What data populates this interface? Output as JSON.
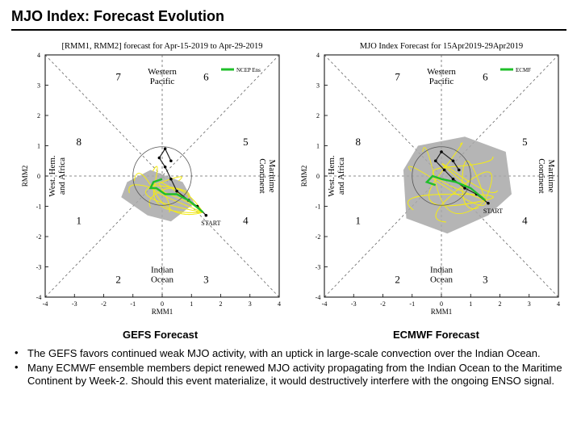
{
  "page": {
    "title": "MJO Index: Forecast Evolution"
  },
  "chart_data": [
    {
      "type": "scatter",
      "title": "[RMM1, RMM2] forecast for Apr-15-2019 to Apr-29-2019",
      "xlabel": "RMM1",
      "ylabel": "RMM2",
      "xlim": [
        -4,
        4
      ],
      "ylim": [
        -4,
        4
      ],
      "xticks": [
        "-4",
        "-3",
        "-2",
        "-1",
        "0",
        "1",
        "2",
        "3",
        "4"
      ],
      "yticks": [
        "-4",
        "-3",
        "-2",
        "-1",
        "0",
        "1",
        "2",
        "3",
        "4"
      ],
      "legend": [
        "NCEP Ens"
      ],
      "phase_labels": [
        "1",
        "2",
        "3",
        "4",
        "5",
        "6",
        "7",
        "8"
      ],
      "region_labels": {
        "top": "Western\nPacific",
        "right": "Maritime\nContinent",
        "bottom": "Indian\nOcean",
        "left": "West. Hem.\nand Africa"
      },
      "start_label": "START",
      "track": [
        [
          1.5,
          -1.3
        ],
        [
          1.2,
          -1.0
        ],
        [
          0.9,
          -0.8
        ],
        [
          0.5,
          -0.5
        ],
        [
          0.3,
          -0.1
        ],
        [
          0.1,
          0.3
        ],
        [
          -0.1,
          0.6
        ],
        [
          0.1,
          0.9
        ],
        [
          0.3,
          0.5
        ]
      ],
      "ensemble_mean": [
        [
          1.4,
          -1.2
        ],
        [
          0.9,
          -0.8
        ],
        [
          0.5,
          -0.6
        ],
        [
          0.1,
          -0.6
        ],
        [
          -0.2,
          -0.4
        ],
        [
          -0.4,
          -0.4
        ],
        [
          -0.3,
          -0.2
        ],
        [
          0.0,
          -0.1
        ]
      ],
      "spread": [
        [
          -1.4,
          -0.7
        ],
        [
          -1.2,
          -0.2
        ],
        [
          -0.4,
          0.2
        ],
        [
          0.7,
          -0.2
        ],
        [
          1.1,
          -0.9
        ],
        [
          0.3,
          -1.5
        ],
        [
          -0.5,
          -1.3
        ]
      ],
      "caption": "GEFS Forecast"
    },
    {
      "type": "scatter",
      "title": "MJO Index Forecast for 15Apr2019-29Apr2019",
      "xlabel": "RMM1",
      "ylabel": "RMM2",
      "xlim": [
        -4,
        4
      ],
      "ylim": [
        -4,
        4
      ],
      "xticks": [
        "-4",
        "-3",
        "-2",
        "-1",
        "0",
        "1",
        "2",
        "3",
        "4"
      ],
      "yticks": [
        "-4",
        "-3",
        "-2",
        "-1",
        "0",
        "1",
        "2",
        "3",
        "4"
      ],
      "legend": [
        "ECMF"
      ],
      "phase_labels": [
        "1",
        "2",
        "3",
        "4",
        "5",
        "6",
        "7",
        "8"
      ],
      "region_labels": {
        "top": "Western\nPacific",
        "right": "Maritime\nContinent",
        "bottom": "Indian\nOcean",
        "left": "West. Hem.\nand Africa"
      },
      "start_label": "START",
      "track": [
        [
          1.6,
          -0.9
        ],
        [
          1.2,
          -0.6
        ],
        [
          0.8,
          -0.4
        ],
        [
          0.4,
          -0.1
        ],
        [
          0.1,
          0.2
        ],
        [
          -0.2,
          0.5
        ],
        [
          0.0,
          0.8
        ],
        [
          0.4,
          0.5
        ],
        [
          0.6,
          0.2
        ]
      ],
      "ensemble_mean": [
        [
          1.5,
          -0.8
        ],
        [
          1.0,
          -0.4
        ],
        [
          0.5,
          -0.2
        ],
        [
          0.0,
          -0.1
        ],
        [
          -0.3,
          0.0
        ],
        [
          -0.5,
          -0.2
        ],
        [
          -0.2,
          -0.3
        ]
      ],
      "spread": [
        [
          -1.2,
          -1.4
        ],
        [
          -1.3,
          0.2
        ],
        [
          -0.8,
          1.0
        ],
        [
          0.8,
          1.3
        ],
        [
          2.2,
          0.8
        ],
        [
          2.4,
          -0.6
        ],
        [
          1.6,
          -1.3
        ],
        [
          0.2,
          -1.9
        ]
      ],
      "caption": "ECMWF Forecast"
    }
  ],
  "captions": {
    "left": "GEFS Forecast",
    "right": "ECMWF Forecast"
  },
  "bullets": [
    "The GEFS favors continued weak MJO activity, with an uptick in large-scale convection over the Indian Ocean.",
    "Many ECMWF ensemble members depict renewed MJO activity propagating from the Indian Ocean to the Maritime Continent by Week-2. Should this event materialize, it would destructively interfere with the ongoing ENSO signal."
  ]
}
